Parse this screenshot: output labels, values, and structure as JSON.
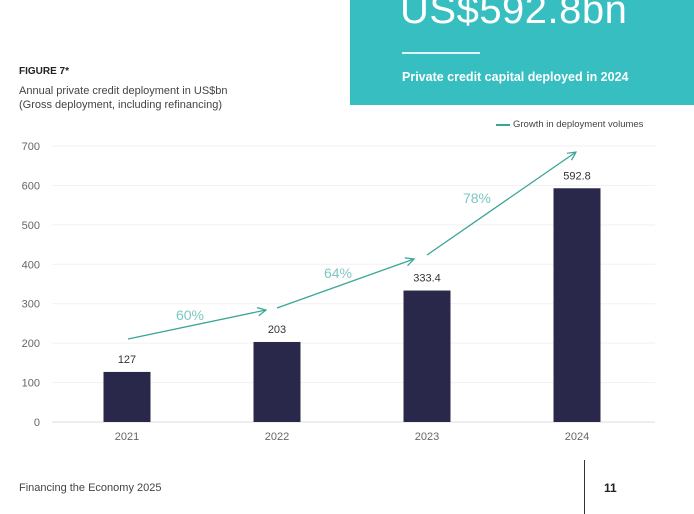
{
  "hero": {
    "value": "US$592.8bn",
    "caption": "Private credit capital deployed in 2024"
  },
  "figure": {
    "label": "FIGURE 7*",
    "title_line1": "Annual private credit deployment in US$bn",
    "title_line2": "(Gross deployment, including refinancing)"
  },
  "colors": {
    "bar": "#29284b",
    "growth_arrow": "#3aa597",
    "growth_label": "#7cc7c2",
    "hero_bg": "#36bec1"
  },
  "chart_data": {
    "type": "bar",
    "categories": [
      "2021",
      "2022",
      "2023",
      "2024"
    ],
    "values": [
      127,
      203,
      333.4,
      592.8
    ],
    "data_labels": [
      "127",
      "203",
      "333.4",
      "592.8"
    ],
    "ylim": [
      0,
      700
    ],
    "yticks": [
      0,
      100,
      200,
      300,
      400,
      500,
      600,
      700
    ],
    "grid": true,
    "legend": {
      "position": "top-right",
      "entries": [
        "Growth in deployment volumes"
      ]
    },
    "annotations": [
      {
        "text": "60%",
        "from": "2021",
        "to": "2022"
      },
      {
        "text": "64%",
        "from": "2022",
        "to": "2023"
      },
      {
        "text": "78%",
        "from": "2023",
        "to": "2024"
      }
    ]
  },
  "footer": {
    "publication": "Financing the Economy 2025",
    "page": "11"
  }
}
